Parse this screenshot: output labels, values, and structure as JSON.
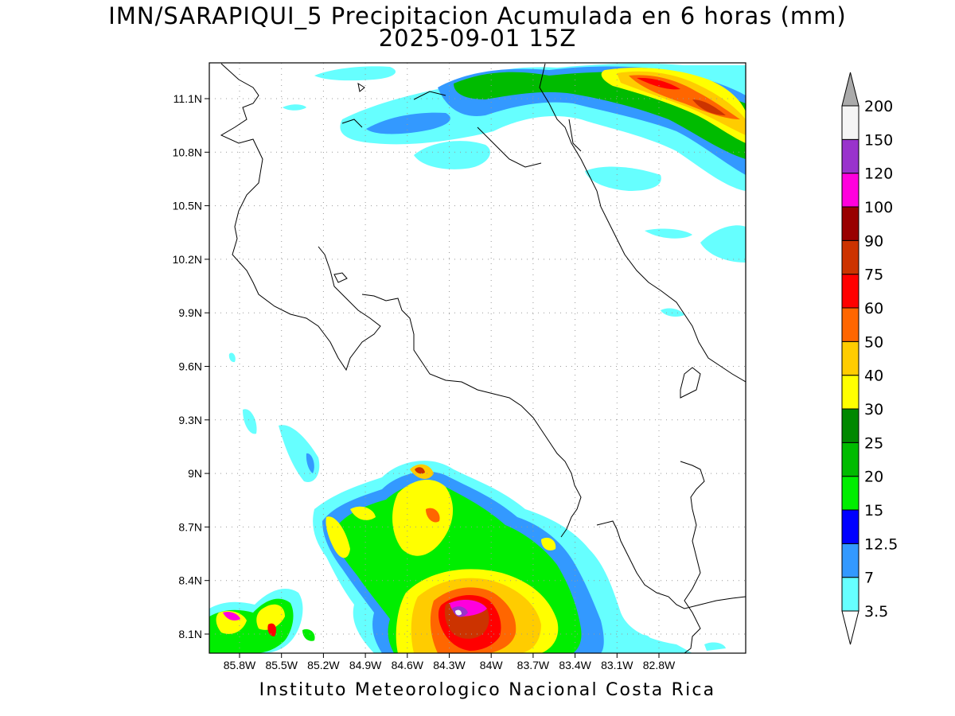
{
  "title": {
    "line1": "IMN/SARAPIQUI_5 Precipitacion Acumulada en 6 horas (mm)",
    "line2": "2025-09-01 15Z"
  },
  "footer": "Instituto Meteorologico Nacional Costa Rica",
  "axes": {
    "lat_labels": [
      "11.1N",
      "10.8N",
      "10.5N",
      "10.2N",
      "9.9N",
      "9.6N",
      "9.3N",
      "9N",
      "8.7N",
      "8.4N",
      "8.1N"
    ],
    "lon_labels": [
      "85.8W",
      "85.5W",
      "85.2W",
      "84.9W",
      "84.6W",
      "84.3W",
      "84W",
      "83.7W",
      "83.4W",
      "83.1W",
      "82.8W"
    ]
  },
  "colorbar": {
    "levels": [
      "3.5",
      "7",
      "12.5",
      "15",
      "20",
      "25",
      "30",
      "40",
      "50",
      "60",
      "75",
      "90",
      "100",
      "120",
      "150",
      "200"
    ],
    "colors": [
      "#66ffff",
      "#3399ff",
      "#0000ff",
      "#00ee00",
      "#00bb00",
      "#008800",
      "#ffff00",
      "#ffcc00",
      "#ff6600",
      "#ff0000",
      "#cc3300",
      "#990000",
      "#ff00dd",
      "#9933cc",
      "#f5f5f5",
      "#aaaaaa"
    ]
  }
}
